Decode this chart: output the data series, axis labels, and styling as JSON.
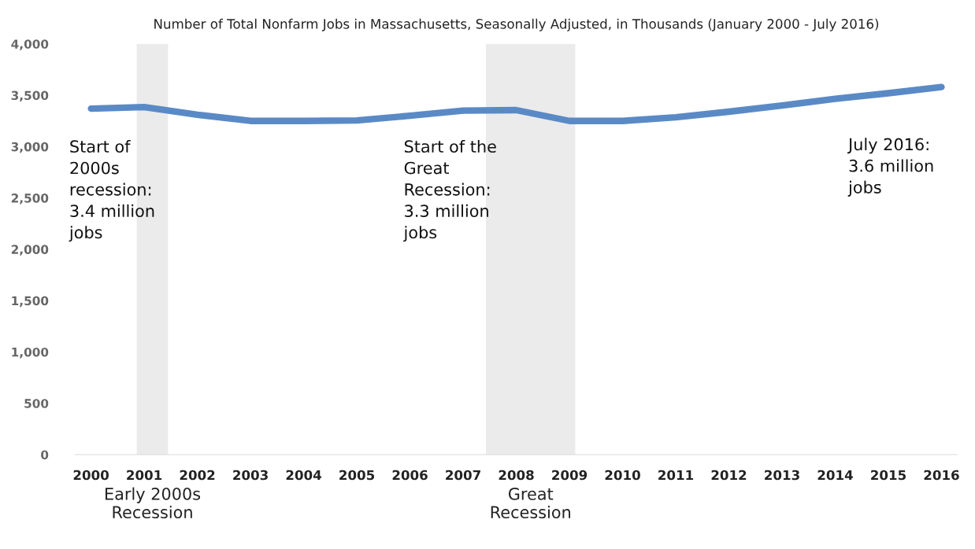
{
  "chart_data": {
    "type": "line",
    "title": "Number of Total Nonfarm Jobs in Massachusetts, Seasonally Adjusted, in Thousands (January 2000 - July 2016)",
    "x": [
      2000,
      2001,
      2002,
      2003,
      2004,
      2005,
      2006,
      2007,
      2008,
      2009,
      2010,
      2011,
      2012,
      2013,
      2014,
      2015,
      2016
    ],
    "series": [
      {
        "color": "#5a8ac6",
        "values": [
          3370,
          3385,
          3310,
          3250,
          3250,
          3255,
          3300,
          3350,
          3355,
          3250,
          3250,
          3285,
          3340,
          3400,
          3465,
          3520,
          3580
        ]
      }
    ],
    "xlim": [
      1999.7,
      2016.3
    ],
    "xticks": [
      2000,
      2001,
      2002,
      2003,
      2004,
      2005,
      2006,
      2007,
      2008,
      2009,
      2010,
      2011,
      2012,
      2013,
      2014,
      2015,
      2016
    ],
    "ylim": [
      0,
      4000
    ],
    "yticks": [
      0,
      500,
      {
        "value": 1000,
        "label": "1,000"
      },
      {
        "value": 1500,
        "label": "1,500"
      },
      {
        "value": 2000,
        "label": "2,000"
      },
      {
        "value": 2500,
        "label": "2,500"
      },
      {
        "value": 3000,
        "label": "3,000"
      },
      {
        "value": 3500,
        "label": "3,500"
      },
      {
        "value": 4000,
        "label": "4,000"
      }
    ],
    "bands": [
      {
        "axis": "x",
        "from": 2000.86,
        "to": 2001.45,
        "label": "Early 2000s\nRecession",
        "color": "#ebebeb"
      },
      {
        "axis": "x",
        "from": 2007.43,
        "to": 2009.11,
        "label": "Great\nRecession",
        "color": "#ebebeb"
      }
    ],
    "annotations": [
      "Start of\n2000s\nrecession:\n3.4 million\njobs",
      "Start of the\nGreat\nRecession:\n3.3 million\njobs",
      "July 2016:\n3.6 million\njobs"
    ],
    "grid": false,
    "legend": false,
    "marker": "none",
    "line_style": "solid"
  }
}
